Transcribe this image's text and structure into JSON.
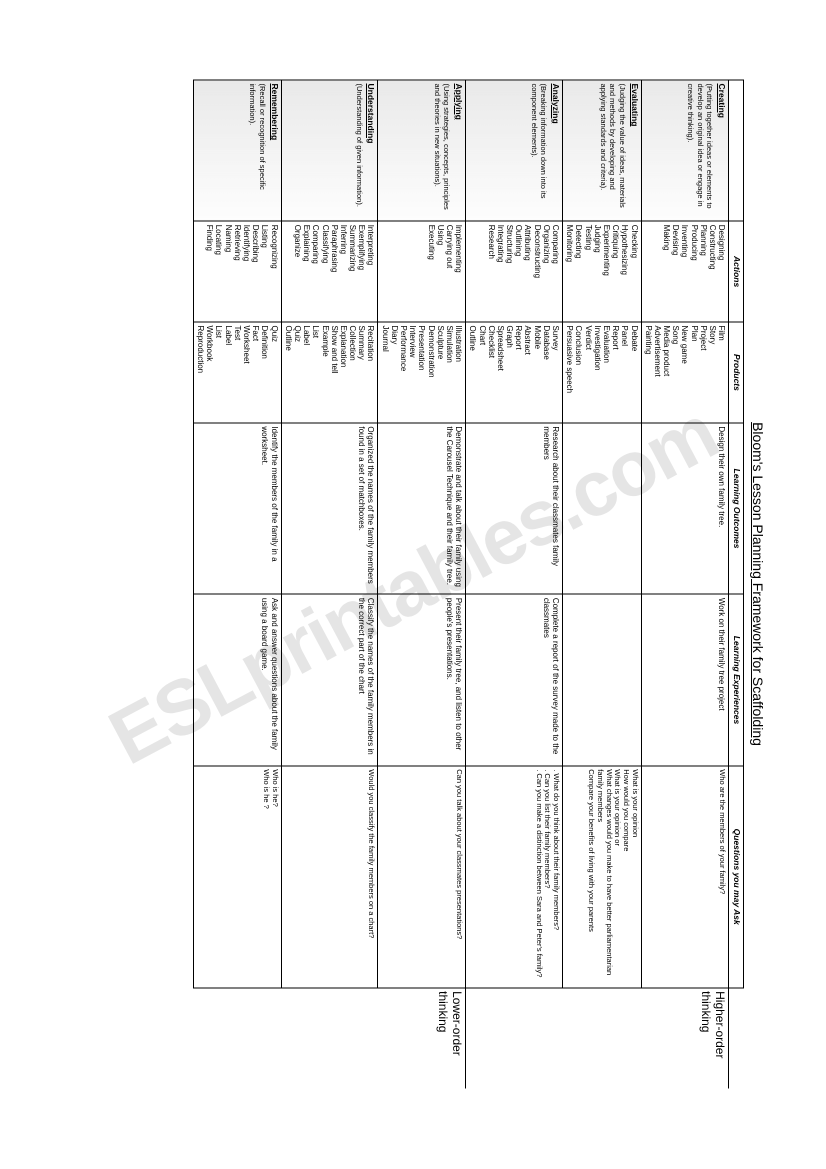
{
  "title": "Bloom's Lesson Planning Framework for Scaffolding",
  "watermark": "ESLprintables.com",
  "order_labels": {
    "higher": "Higher-order thinking",
    "lower": "Lower-order thinking"
  },
  "headers": {
    "actions": "Actions",
    "products": "Products",
    "learning_outcomes": "Learning Outcomes",
    "learning_experiences": "Learning Experiences",
    "questions": "Questions you may Ask"
  },
  "rows": [
    {
      "level": "Creating",
      "desc": "(Putting together ideas or elements to develop an original idea or engage in creative thinking).",
      "actions": [
        "Designing",
        "Constructing",
        "Planning",
        "Producing",
        "Inventing",
        "Devising",
        "Making"
      ],
      "products": [
        "Film",
        "Story",
        "Project",
        "Plan",
        "New game",
        "Song",
        "Media product",
        "Advertisement",
        "Painting"
      ],
      "outcomes": "Design their own family tree.",
      "experiences": "Work on their family tree project",
      "questions": [
        "Who are the members of your family?"
      ]
    },
    {
      "level": "Evaluating",
      "desc": "(Judging the value of ideas, materials and methods by developing and applying standards and criteria).",
      "actions": [
        "Checking",
        "Hypothesizing",
        "Critiquing",
        "Experimenting",
        "Judging",
        "Testing",
        "Detecting",
        "Monitoring"
      ],
      "products": [
        "Debate",
        "Panel",
        "Report",
        "Evaluation",
        "Investigation",
        "Verdict",
        "Conclusion",
        "Persuasive speech"
      ],
      "outcomes": "",
      "experiences": "",
      "questions": [
        "What is your opinion",
        "How would you compare",
        "What is your opinion or",
        "What changes would you make to have better parliamentarian family members",
        "Compare your benefits of living with your parents"
      ]
    },
    {
      "level": "Analyzing",
      "desc": "(Breaking information down into its component elements).",
      "actions": [
        "Comparing",
        "Organizing",
        "Deconstructing",
        "Attributing",
        "Outlining",
        "Structuring",
        "Integrating",
        "Research"
      ],
      "products": [
        "Survey",
        "Database",
        "Mobile",
        "Abstract",
        "Report",
        "Graph",
        "Spreadsheet",
        "Checklist",
        "Chart",
        "Outline"
      ],
      "outcomes": "Research about their classmates family members",
      "experiences": "Complete a report of the survey made to the classmates",
      "questions": [
        ". What do you think about their family members?",
        ". Can you list their family members?",
        ". Can you make a distinction between Sara and Peter's family?"
      ]
    },
    {
      "level": "Applying",
      "desc": "(Using strategies, concepts, principles and theories in new situations).",
      "actions": [
        "Implementing",
        "Carrying out",
        "Using",
        "Executing"
      ],
      "products": [
        "Illustration",
        "Simulation",
        "Sculpture",
        "Demonstration",
        "Presentation",
        "Interview",
        "Performance",
        "Diary",
        "Journal"
      ],
      "outcomes": "Demonstrate and talk about their family using the Carousel Technique and their family tree.",
      "experiences": "Present their family tree, and listen to other people's presentations.",
      "questions": [
        "Can you talk about your classmates presentations?"
      ]
    },
    {
      "level": "Understanding",
      "desc": "(Understanding of given information).",
      "actions": [
        "Interpreting",
        "Exemplifying",
        "Summarizing",
        "Inferring",
        "Paraphrasing",
        "Classifying",
        "Comparing",
        "Explaining",
        "Organize"
      ],
      "products": [
        "Recitation",
        "Summary",
        "Collection",
        "Explanation",
        "Show and tell",
        "Example",
        "List",
        "Label",
        "Quiz",
        "Outline"
      ],
      "outcomes": "Organized the names of the family members found in a set of matchboxes.",
      "experiences": "Classify the names of the family members in the correct part of the chart",
      "questions": [
        "Would you classify the family members on a chart?"
      ]
    },
    {
      "level": "Remembering",
      "desc": "(Recall or recognition of specific information).",
      "actions": [
        "Recognizing",
        "Listing",
        "Describing",
        "Identifying",
        "Retrieving",
        "Naming",
        "Locating",
        "Finding"
      ],
      "products": [
        "Quiz",
        "Definition",
        "Fact",
        "Worksheet",
        "Test",
        "Label",
        "List",
        "Workbook",
        "Reproduction"
      ],
      "outcomes": "Identify the members of the family in a worksheet.",
      "experiences": "Ask and answer questions about the family using a board game.",
      "questions": [
        "Who is he?",
        "Who is he ?"
      ]
    }
  ],
  "col_widths": {
    "level": "14%",
    "actions": "10%",
    "products": "10%",
    "outcomes": "17%",
    "experiences": "17%",
    "questions": "22%",
    "order": "10%"
  }
}
